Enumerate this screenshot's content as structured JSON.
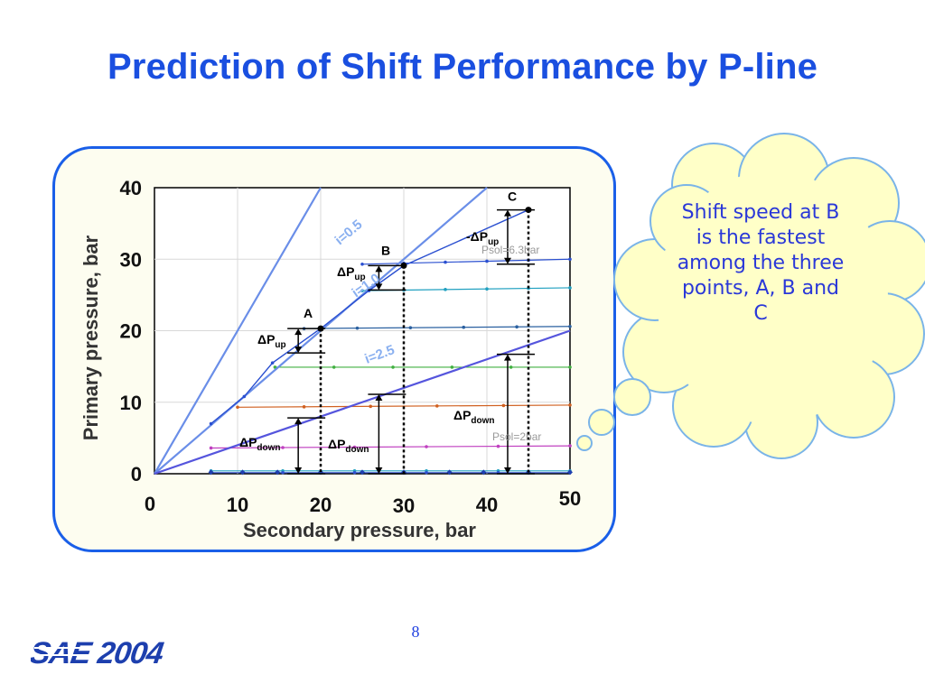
{
  "slide": {
    "title": "Prediction of Shift Performance by P-line",
    "callout": "Shift speed at B is the fastest among the three points, A, B and C",
    "page_number": "8",
    "logo_text": "SAE 2004"
  },
  "colors": {
    "title": "#1a4fe0",
    "panel_border": "#1a5fe8",
    "cloud_fill": "#ffffc8",
    "cloud_stroke": "#7ab4e8",
    "pline": "#6a8ee8",
    "pline_low": "#5555dd",
    "shift_curve": "#2a4fd0"
  },
  "chart_data": {
    "type": "line",
    "xlabel": "Secondary pressure, bar",
    "ylabel": "Primary pressure, bar",
    "xlim": [
      0,
      50
    ],
    "ylim": [
      0,
      40
    ],
    "xticks": [
      "0",
      "10",
      "20",
      "30",
      "40",
      "50"
    ],
    "yticks": [
      "0",
      "10",
      "20",
      "30",
      "40"
    ],
    "grid": true,
    "ratio_lines": [
      {
        "label": "i=0.5",
        "ratio": 0.5,
        "color": "#6a8ee8"
      },
      {
        "label": "i=1.0",
        "ratio": 1.0,
        "color": "#6a8ee8"
      },
      {
        "label": "i=2.5",
        "ratio": 2.5,
        "color": "#5555dd"
      }
    ],
    "shift_curve": {
      "color": "#2a4fd0",
      "points": [
        [
          6.8,
          7.0
        ],
        [
          10.8,
          10.8
        ],
        [
          14.2,
          15.5
        ],
        [
          20.0,
          20.3
        ],
        [
          25.8,
          25.6
        ],
        [
          30.0,
          29.1
        ],
        [
          45.0,
          36.9
        ]
      ]
    },
    "constant_psol_lines": [
      {
        "y0": 29.3,
        "y1": 30.0,
        "x_start": 25.0,
        "color": "#2a4fd0"
      },
      {
        "y0": 25.6,
        "y1": 26.0,
        "x_start": 25.0,
        "color": "#20a0c0"
      },
      {
        "y0": 20.3,
        "y1": 20.6,
        "x_start": 18.0,
        "color": "#2a60a0"
      },
      {
        "y0": 14.9,
        "y1": 14.9,
        "x_start": 14.5,
        "color": "#40b040"
      },
      {
        "y0": 9.3,
        "y1": 9.6,
        "x_start": 10.0,
        "color": "#d06020"
      },
      {
        "y0": 3.6,
        "y1": 3.9,
        "x_start": 6.8,
        "color": "#c040c0"
      },
      {
        "y0": 0.4,
        "y1": 0.4,
        "x_start": 6.8,
        "color": "#20a0c0"
      },
      {
        "y0": 0.15,
        "y1": 0.15,
        "x_start": 6.8,
        "color": "#3050d0"
      }
    ],
    "points": [
      {
        "label": "A",
        "x": 20.0,
        "y": 20.3
      },
      {
        "label": "B",
        "x": 30.0,
        "y": 29.1
      },
      {
        "label": "C",
        "x": 45.0,
        "y": 36.9
      }
    ],
    "verticals_x": [
      20,
      30,
      45
    ],
    "delta_up": [
      {
        "x": 17.3,
        "y_top": 20.3,
        "y_bottom": 16.9
      },
      {
        "x": 27.0,
        "y_top": 29.1,
        "y_bottom": 25.7
      },
      {
        "x": 42.5,
        "y_top": 36.9,
        "y_bottom": 29.3
      }
    ],
    "delta_down": [
      {
        "x": 17.3,
        "y_top": 7.8,
        "y_bottom": 0.0
      },
      {
        "x": 27.0,
        "y_top": 11.1,
        "y_bottom": 0.0
      },
      {
        "x": 42.5,
        "y_top": 16.7,
        "y_bottom": 0.0
      }
    ],
    "annotations": {
      "dp_up_a": {
        "prefix": "ΔP",
        "sub": "up"
      },
      "dp_up_b": {
        "prefix": "ΔP",
        "sub": "up"
      },
      "dp_up_c": {
        "prefix": "-ΔP",
        "sub": "up"
      },
      "dp_down_a": {
        "prefix": "ΔP",
        "sub": "down"
      },
      "dp_down_b": {
        "prefix": "ΔP",
        "sub": "down"
      },
      "dp_down_c": {
        "prefix": "ΔP",
        "sub": "down"
      },
      "psol_high": "Psol=6.3bar",
      "psol_low": "Psol=2bar"
    }
  }
}
